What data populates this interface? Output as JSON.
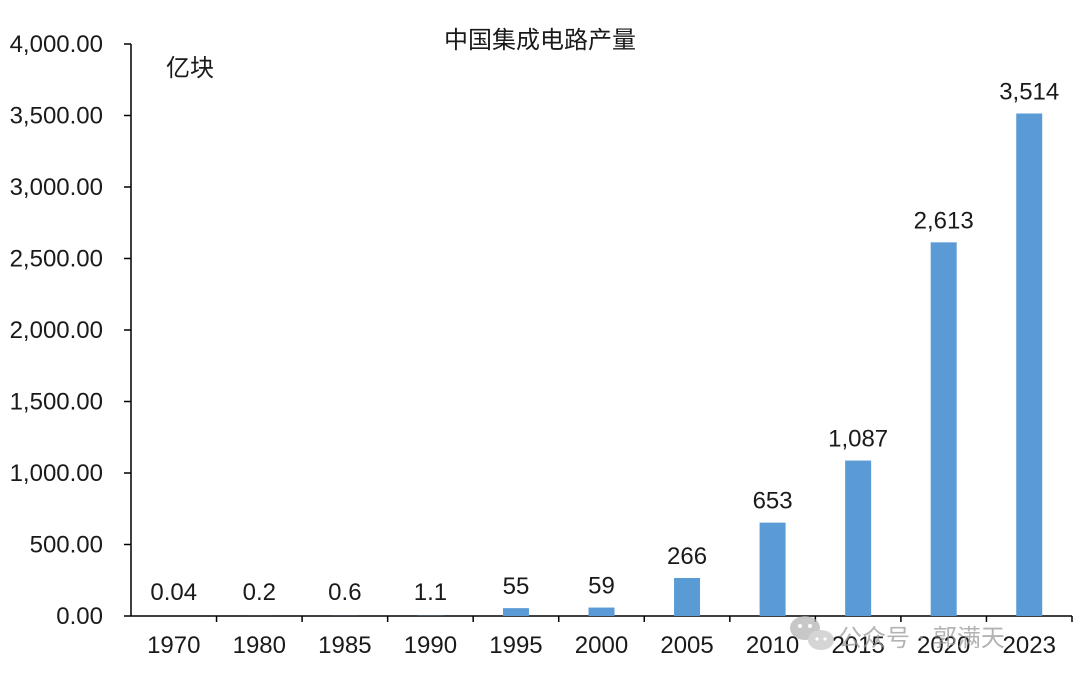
{
  "chart_data": {
    "type": "bar",
    "title": "中国集成电路产量",
    "unit_label": "亿块",
    "categories": [
      "1970",
      "1980",
      "1985",
      "1990",
      "1995",
      "2000",
      "2005",
      "2010",
      "2015",
      "2020",
      "2023"
    ],
    "values": [
      0.04,
      0.2,
      0.6,
      1.1,
      55,
      59,
      266,
      653,
      1087,
      2613,
      3514
    ],
    "data_labels": [
      "0.04",
      "0.2",
      "0.6",
      "1.1",
      "55",
      "59",
      "266",
      "653",
      "1,087",
      "2,613",
      "3,514"
    ],
    "ylim": [
      0,
      4000
    ],
    "y_ticks": [
      0,
      500,
      1000,
      1500,
      2000,
      2500,
      3000,
      3500,
      4000
    ],
    "y_tick_labels": [
      "0.00",
      "500.00",
      "1,000.00",
      "1,500.00",
      "2,000.00",
      "2,500.00",
      "3,000.00",
      "3,500.00",
      "4,000.00"
    ],
    "grid": false,
    "legend": "none",
    "bar_color": "#5b9bd5"
  },
  "watermark": {
    "icon": "wechat-icon",
    "text": "公众号 · 郭满天"
  }
}
